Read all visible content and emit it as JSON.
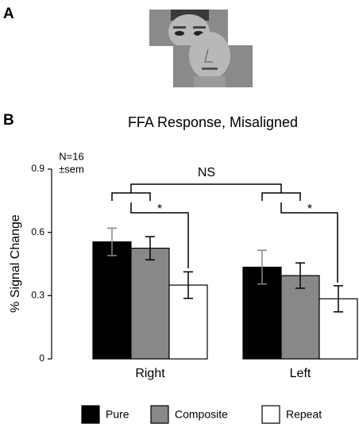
{
  "panel_labels": [
    "A",
    "B"
  ],
  "chart_data": {
    "type": "bar",
    "title": "FFA Response, Misaligned",
    "y_label": "% Signal Change",
    "annotations": [
      "N=16",
      "±sem",
      "NS",
      "*",
      "*"
    ],
    "categories": [
      "Right",
      "Left"
    ],
    "series": [
      {
        "name": "Pure",
        "color": "#000000",
        "values": [
          0.555,
          0.435
        ],
        "errors": [
          0.065,
          0.08
        ]
      },
      {
        "name": "Composite",
        "color": "#888888",
        "values": [
          0.525,
          0.395
        ],
        "errors": [
          0.055,
          0.06
        ]
      },
      {
        "name": "Repeat",
        "color": "#ffffff",
        "values": [
          0.35,
          0.285
        ],
        "errors": [
          0.063,
          0.062
        ]
      }
    ],
    "ylim": [
      0,
      0.9
    ],
    "yticks": [
      0,
      0.3,
      0.6,
      0.9
    ]
  }
}
